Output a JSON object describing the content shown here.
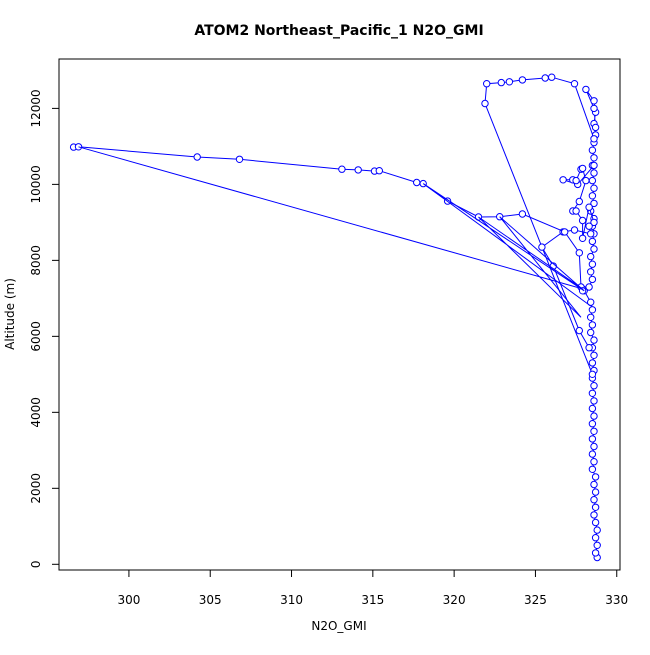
{
  "chart_data": {
    "type": "scatter",
    "title": "ATOM2 Northeast_Pacific_1 N2O_GMI",
    "xlabel": "N2O_GMI",
    "ylabel": "Altitude (m)",
    "xlim": [
      295.7,
      330.2
    ],
    "ylim": [
      -150,
      13300
    ],
    "x_ticks": [
      300,
      305,
      310,
      315,
      320,
      325,
      330
    ],
    "y_ticks": [
      0,
      2000,
      4000,
      6000,
      8000,
      10000,
      12000
    ],
    "grid": false,
    "legend": "none",
    "color": "#0000ff",
    "series": [
      {
        "style": "points-and-lines",
        "points": [
          [
            328.8,
            180
          ],
          [
            328.7,
            300
          ],
          [
            328.8,
            500
          ],
          [
            328.7,
            700
          ],
          [
            328.8,
            900
          ],
          [
            328.7,
            1100
          ],
          [
            328.6,
            1300
          ],
          [
            328.7,
            1500
          ],
          [
            328.6,
            1700
          ],
          [
            328.7,
            1900
          ],
          [
            328.6,
            2100
          ],
          [
            328.7,
            2300
          ],
          [
            328.5,
            2500
          ],
          [
            328.6,
            2700
          ],
          [
            328.5,
            2900
          ],
          [
            328.6,
            3100
          ],
          [
            328.5,
            3300
          ],
          [
            328.6,
            3500
          ],
          [
            328.5,
            3700
          ],
          [
            328.6,
            3900
          ],
          [
            328.5,
            4100
          ],
          [
            328.6,
            4300
          ],
          [
            328.5,
            4500
          ],
          [
            328.6,
            4700
          ],
          [
            328.5,
            4900
          ],
          [
            328.6,
            5100
          ],
          [
            328.5,
            5300
          ],
          [
            328.6,
            5500
          ],
          [
            328.5,
            5700
          ],
          [
            328.6,
            5900
          ],
          [
            328.4,
            6100
          ],
          [
            328.5,
            6300
          ],
          [
            328.4,
            6500
          ],
          [
            328.5,
            6700
          ],
          [
            328.4,
            6900
          ],
          [
            328.0,
            7200
          ],
          [
            327.9,
            7250
          ],
          [
            328.3,
            7300
          ],
          [
            328.5,
            7500
          ],
          [
            328.4,
            7700
          ],
          [
            328.5,
            7900
          ],
          [
            328.4,
            8100
          ],
          [
            328.6,
            8300
          ],
          [
            328.5,
            8500
          ],
          [
            328.6,
            8700
          ],
          [
            328.5,
            8900
          ],
          [
            328.6,
            9100
          ],
          [
            328.4,
            9300
          ],
          [
            328.6,
            9500
          ],
          [
            328.5,
            9700
          ],
          [
            328.6,
            9900
          ],
          [
            328.5,
            10100
          ],
          [
            328.6,
            10300
          ],
          [
            328.5,
            10500
          ],
          [
            328.6,
            10700
          ],
          [
            328.5,
            10900
          ],
          [
            328.6,
            11100
          ],
          [
            328.7,
            11300
          ],
          [
            328.6,
            11600
          ],
          [
            328.7,
            11900
          ],
          [
            328.6,
            12200
          ],
          [
            328.1,
            12500
          ],
          [
            328.6,
            12000
          ],
          [
            328.7,
            11500
          ],
          [
            328.6,
            11200
          ],
          [
            327.4,
            12650
          ],
          [
            326.0,
            12820
          ],
          [
            325.6,
            12800
          ],
          [
            324.2,
            12750
          ],
          [
            323.4,
            12700
          ],
          [
            322.9,
            12680
          ],
          [
            322.0,
            12650
          ],
          [
            321.9,
            12130
          ],
          [
            328.5,
            5000
          ]
        ]
      },
      {
        "style": "points-and-lines",
        "points": [
          [
            328.6,
            10500
          ],
          [
            327.6,
            10000
          ],
          [
            326.7,
            10120
          ],
          [
            327.3,
            10120
          ],
          [
            327.5,
            10100
          ],
          [
            327.8,
            10400
          ],
          [
            327.9,
            10420
          ],
          [
            328.1,
            10100
          ],
          [
            327.7,
            9550
          ],
          [
            327.3,
            9300
          ],
          [
            327.5,
            9300
          ],
          [
            327.9,
            9050
          ],
          [
            327.9,
            8580
          ],
          [
            328.3,
            9400
          ],
          [
            328.6,
            9000
          ],
          [
            328.3,
            8900
          ],
          [
            328.4,
            8700
          ],
          [
            327.4,
            8800
          ],
          [
            326.7,
            8750
          ],
          [
            325.4,
            8350
          ],
          [
            326.1,
            7850
          ],
          [
            327.7,
            6150
          ],
          [
            328.3,
            5700
          ]
        ]
      },
      {
        "style": "points-and-lines",
        "points": [
          [
            296.6,
            10980
          ],
          [
            296.9,
            10990
          ],
          [
            304.2,
            10720
          ],
          [
            306.8,
            10660
          ],
          [
            313.1,
            10400
          ],
          [
            314.1,
            10380
          ],
          [
            315.1,
            10350
          ],
          [
            315.4,
            10360
          ],
          [
            317.7,
            10050
          ],
          [
            318.1,
            10020
          ],
          [
            319.6,
            9560
          ],
          [
            321.5,
            9140
          ],
          [
            322.8,
            9150
          ],
          [
            324.2,
            9220
          ],
          [
            326.8,
            8750
          ],
          [
            327.7,
            8200
          ],
          [
            327.8,
            7300
          ],
          [
            327.9,
            7200
          ]
        ]
      },
      {
        "style": "lines",
        "points": [
          [
            296.9,
            10990
          ],
          [
            327.9,
            7250
          ],
          [
            321.5,
            9140
          ],
          [
            327.8,
            6500
          ],
          [
            322.8,
            9150
          ],
          [
            328.0,
            7200
          ],
          [
            318.1,
            10020
          ],
          [
            328.4,
            6800
          ]
        ]
      }
    ]
  }
}
